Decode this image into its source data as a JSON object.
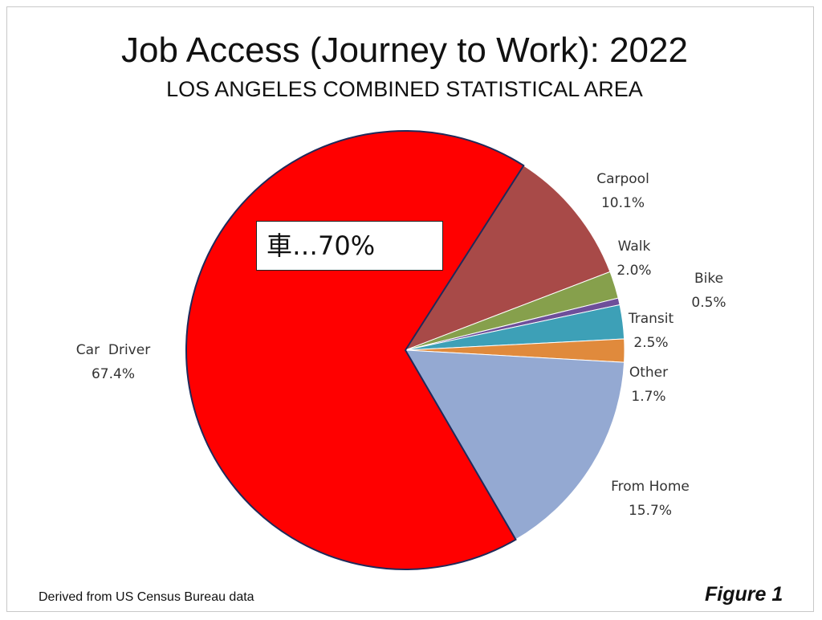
{
  "title": "Job Access (Journey to Work): 2022",
  "subtitle": "LOS ANGELES COMBINED STATISTICAL AREA",
  "callout": "車…70%",
  "source": "Derived from US Census Bureau data",
  "figure_label": "Figure 1",
  "chart_data": {
    "type": "pie",
    "title": "Job Access (Journey to Work): 2022",
    "subtitle": "LOS ANGELES COMBINED STATISTICAL AREA",
    "slices": [
      {
        "name": "Carpool",
        "value": 10.1,
        "label": "10.1%",
        "color": "#A84A48"
      },
      {
        "name": "Walk",
        "value": 2.0,
        "label": "2.0%",
        "color": "#86A04C"
      },
      {
        "name": "Bike",
        "value": 0.5,
        "label": "0.5%",
        "color": "#6E4F9A"
      },
      {
        "name": "Transit",
        "value": 2.5,
        "label": "2.5%",
        "color": "#3DA0B7"
      },
      {
        "name": "Other",
        "value": 1.7,
        "label": "1.7%",
        "color": "#E08A3C"
      },
      {
        "name": "From Home",
        "value": 15.7,
        "label": "15.7%",
        "color": "#94A9D2"
      },
      {
        "name": "Car  Driver",
        "value": 67.4,
        "label": "67.4%",
        "color": "#FF0000"
      }
    ]
  }
}
